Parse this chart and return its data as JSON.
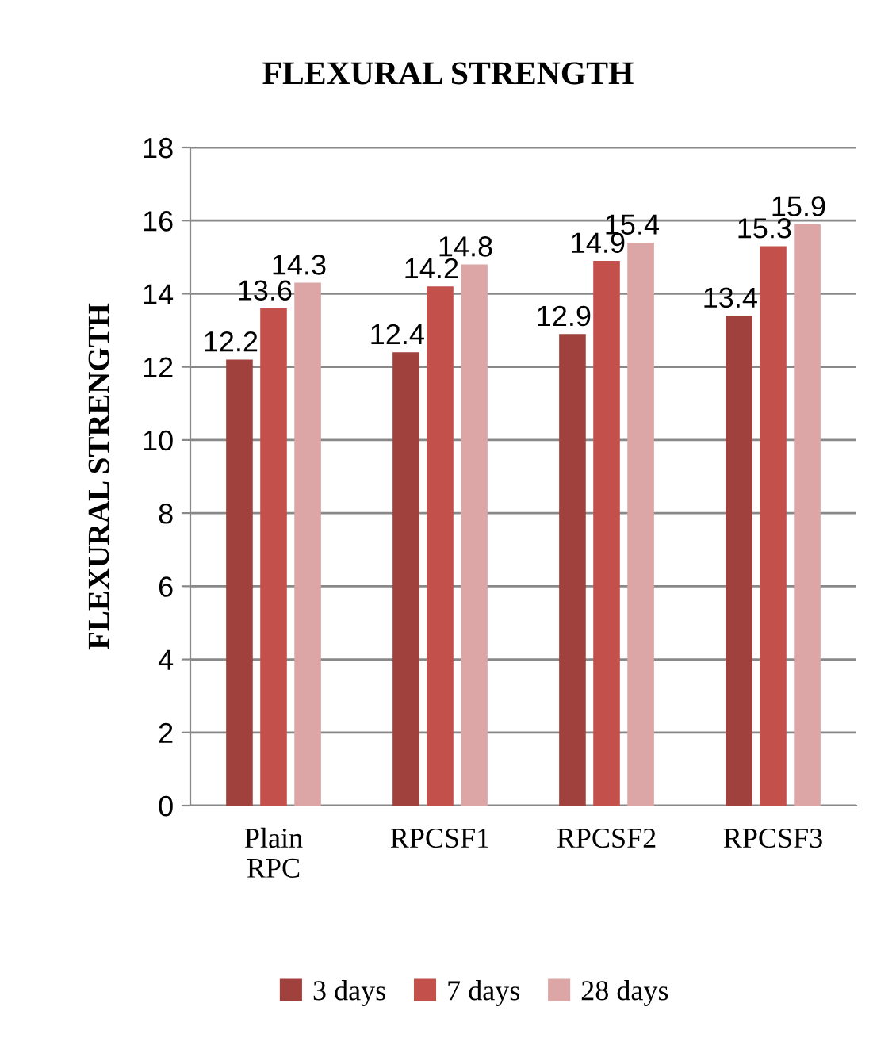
{
  "chart_data": {
    "type": "bar",
    "title": "FLEXURAL STRENGTH",
    "ylabel": "FLEXURAL STRENGTH",
    "categories": [
      "Plain\nRPC",
      "RPCSF1",
      "RPCSF2",
      "RPCSF3"
    ],
    "series": [
      {
        "name": "3 days",
        "color": "#a0413d",
        "values": [
          12.2,
          12.4,
          12.9,
          13.4
        ]
      },
      {
        "name": "7 days",
        "color": "#c4504c",
        "values": [
          13.6,
          14.2,
          14.9,
          15.3
        ]
      },
      {
        "name": "28 days",
        "color": "#dba6a5",
        "values": [
          14.3,
          14.8,
          15.4,
          15.9
        ]
      }
    ],
    "ylim": [
      0,
      18
    ],
    "yticks": [
      0,
      2,
      4,
      6,
      8,
      10,
      12,
      14,
      16,
      18
    ],
    "grid": "y",
    "legend": "bottom",
    "data_labels": true
  }
}
